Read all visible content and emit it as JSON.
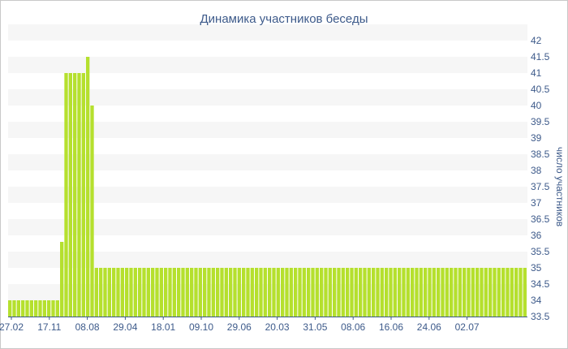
{
  "chart_data": {
    "type": "bar",
    "title": "Динамика участников беседы",
    "xlabel": "",
    "ylabel": "число участников",
    "y_axis_side": "right",
    "ylim": [
      33.5,
      42
    ],
    "y_ticks": [
      "33.5",
      "34",
      "34.5",
      "35",
      "35.5",
      "36",
      "36.5",
      "37",
      "37.5",
      "38",
      "38.5",
      "39",
      "39.5",
      "40",
      "40.5",
      "41",
      "41.5",
      "42"
    ],
    "x_ticks": [
      "27.02",
      "17.11",
      "08.08",
      "29.04",
      "18.01",
      "09.10",
      "29.06",
      "20.03",
      "31.05",
      "08.06",
      "16.06",
      "24.06",
      "02.07"
    ],
    "grid": "horizontal alternating bands",
    "colors": {
      "bar": "#b5e02e",
      "band": "#f6f6f6",
      "text": "#3d5a8a"
    },
    "values": [
      34,
      34,
      34,
      34,
      34,
      34,
      34,
      34,
      34,
      34,
      34,
      34,
      35.8,
      41,
      41,
      41,
      41,
      41,
      41.5,
      40,
      35,
      35,
      35,
      35,
      35,
      35,
      35,
      35,
      35,
      35,
      35,
      35,
      35,
      35,
      35,
      35,
      35,
      35,
      35,
      35,
      35,
      35,
      35,
      35,
      35,
      35,
      35,
      35,
      35,
      35,
      35,
      35,
      35,
      35,
      35,
      35,
      35,
      35,
      35,
      35,
      35,
      35,
      35,
      35,
      35,
      35,
      35,
      35,
      35,
      35,
      35,
      35,
      35,
      35,
      35,
      35,
      35,
      35,
      35,
      35,
      35,
      35,
      35,
      35,
      35,
      35,
      35,
      35,
      35,
      35,
      35,
      35,
      35,
      35,
      35,
      35,
      35,
      35,
      35,
      35,
      35,
      35,
      35,
      35,
      35,
      35,
      35,
      35,
      35,
      35,
      35,
      35,
      35,
      35,
      35,
      35,
      35,
      35,
      35,
      35
    ]
  }
}
